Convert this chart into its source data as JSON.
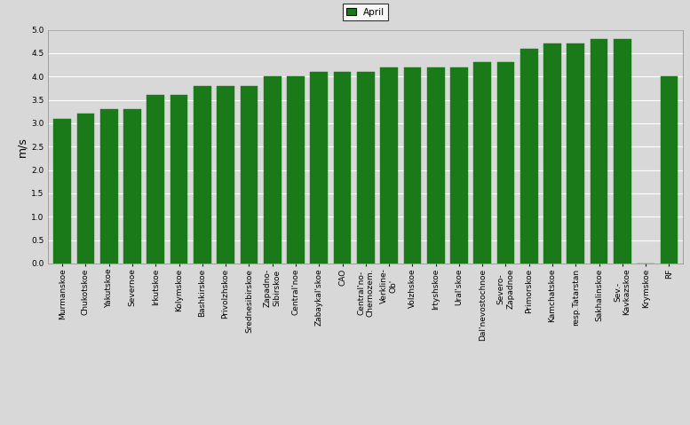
{
  "categories": [
    "Murmanskoe",
    "Chukotskoe",
    "Yakutskoe",
    "Severnoe",
    "Irkutskoe",
    "Kolymskoe",
    "Bashkirskoe",
    "Privolzhskoe",
    "Srednesibirskoe",
    "Zapadno-\nSibirskoe",
    "Central'noe",
    "Zabaykal'skoe",
    "CAO",
    "Central'no-\nChernozem.",
    "Verkline-\nOb'",
    "Volzhskoe",
    "Irtyshskoe",
    "Ural'skoe",
    "Dal'nevostochnoe",
    "Severo-\nZapadnoe",
    "Primorskoe",
    "Kamchatskoe",
    "resp.Tatarstan",
    "Sakhalinskoe",
    "Sev.-\nKavkazskoe",
    "Krymskoe",
    "RF"
  ],
  "values": [
    3.1,
    3.2,
    3.3,
    3.3,
    3.6,
    3.6,
    3.8,
    3.8,
    3.8,
    4.0,
    4.0,
    4.1,
    4.1,
    4.1,
    4.2,
    4.2,
    4.2,
    4.2,
    4.3,
    4.3,
    4.6,
    4.7,
    4.7,
    4.8,
    4.8,
    0.0,
    4.0
  ],
  "bar_color": "#1a7a1a",
  "ylabel": "m/s",
  "ylim": [
    0,
    5
  ],
  "yticks": [
    0,
    0.5,
    1.0,
    1.5,
    2.0,
    2.5,
    3.0,
    3.5,
    4.0,
    4.5,
    5.0
  ],
  "legend_label": "April",
  "legend_color": "#1a7a1a",
  "bg_color": "#d8d8d8",
  "plot_bg": "#d8d8d8",
  "ylabel_fontsize": 9,
  "tick_fontsize": 6.5
}
